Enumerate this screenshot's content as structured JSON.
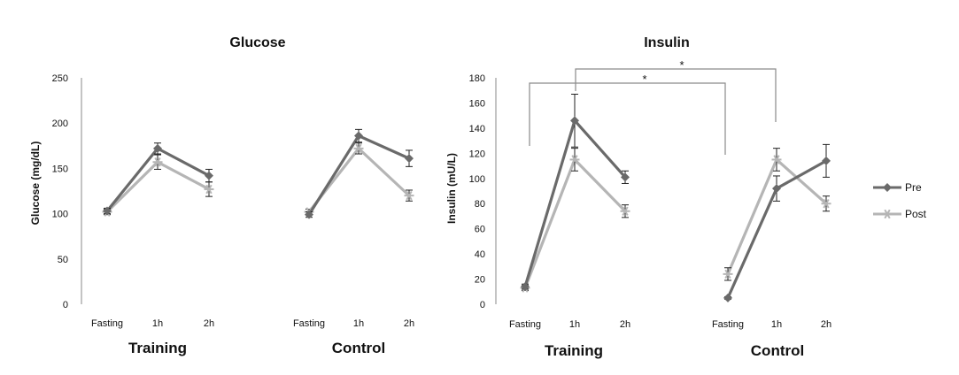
{
  "colors": {
    "pre": "#6a6a6a",
    "post": "#b5b5b5",
    "axis": "#8a8a8a",
    "bracket": "#8a8a8a",
    "error": "#222222"
  },
  "legend": {
    "pre": "Pre",
    "post": "Post"
  },
  "chart_data": [
    {
      "type": "line",
      "title": "Glucose",
      "ylabel": "Glucose (mg/dL)",
      "xlabel": "",
      "ylim": [
        0,
        250
      ],
      "yticks": [
        0,
        50,
        100,
        150,
        200,
        250
      ],
      "groups": [
        {
          "label": "Training",
          "timepoints": [
            "Fasting",
            "1h",
            "2h"
          ]
        },
        {
          "label": "Control",
          "timepoints": [
            "Fasting",
            "1h",
            "2h"
          ]
        }
      ],
      "series": [
        {
          "name": "Pre",
          "values": [
            [
              103,
              172,
              142
            ],
            [
              99,
              186,
              161
            ]
          ],
          "errors": [
            [
              3,
              6,
              7
            ],
            [
              3,
              7,
              9
            ]
          ]
        },
        {
          "name": "Post",
          "values": [
            [
              102,
              157,
              127
            ],
            [
              102,
              172,
              120
            ]
          ],
          "errors": [
            [
              3,
              8,
              8
            ],
            [
              3,
              6,
              6
            ]
          ]
        }
      ],
      "legend": "none",
      "grid": false
    },
    {
      "type": "line",
      "title": "Insulin",
      "ylabel": "Insulin (mU/L)",
      "xlabel": "",
      "ylim": [
        0,
        180
      ],
      "yticks": [
        0,
        20,
        40,
        60,
        80,
        100,
        120,
        140,
        160,
        180
      ],
      "groups": [
        {
          "label": "Training",
          "timepoints": [
            "Fasting",
            "1h",
            "2h"
          ]
        },
        {
          "label": "Control",
          "timepoints": [
            "Fasting",
            "1h",
            "2h"
          ]
        }
      ],
      "series": [
        {
          "name": "Pre",
          "values": [
            [
              14,
              146,
              101
            ],
            [
              5,
              92,
              114
            ]
          ],
          "errors": [
            [
              2,
              21,
              5
            ],
            [
              1,
              10,
              13
            ]
          ]
        },
        {
          "name": "Post",
          "values": [
            [
              13,
              115,
              74
            ],
            [
              24,
              115,
              80
            ]
          ],
          "errors": [
            [
              2,
              9,
              5
            ],
            [
              5,
              9,
              6
            ]
          ]
        }
      ],
      "annotations": [
        {
          "text": "*",
          "from": "Training 1h",
          "to": "Control 1h"
        },
        {
          "text": "*",
          "from": "Training Fasting",
          "to": "Control Fasting"
        }
      ],
      "legend": "right",
      "grid": false
    }
  ]
}
